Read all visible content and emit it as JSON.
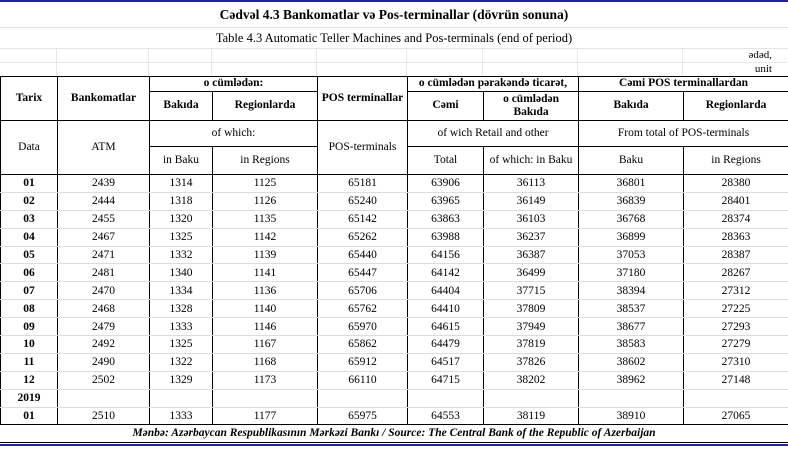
{
  "page": {
    "title_az": "Cədvəl 4.3 Bankomatlar və Pos-terminallar (dövrün sonuna)",
    "title_en": "Table 4.3 Automatic Teller Machines and Pos-terminals (end of period)",
    "unit_az": "ədəd,",
    "unit_en": "unit",
    "footer": "Mənbə: Azərbaycan Respublikasının Mərkəzi Bankı / Source: The Central Bank of the Republic of Azerbaijan",
    "accent_blue": "#2222a6"
  },
  "table": {
    "header": {
      "tarix": "Tarix",
      "data": "Data",
      "bankomatlar": "Bankomatlar",
      "atm": "ATM",
      "az_of_which": "o cümlədən:",
      "az_in_baku": "Bakıda",
      "az_in_regions": "Regionlarda",
      "pos_az": "POS terminallar",
      "pos_en": "POS-terminals",
      "en_of_which": "of  which:",
      "en_in_baku": "in Baku",
      "en_in_regions": "in Regions",
      "retail_az": "o cümlədən pərakəndə ticarət,",
      "retail_total_az": "Cəmi",
      "retail_baku_az": "o cümlədən Bakıda",
      "retail_en": "of wich Retail and other",
      "retail_total_en": "Total",
      "retail_baku_en": "of which: in Baku",
      "pos_total_az": "Cəmi POS terminallardan",
      "pos_total_baku_az": "Bakıda",
      "pos_total_regions_az": "Regionlarda",
      "pos_total_en": "From total of POS-terminals",
      "pos_total_baku_en": "Baku",
      "pos_total_regions_en": "in Regions"
    },
    "rows": [
      {
        "label": "01",
        "values": [
          "2439",
          "1314",
          "1125",
          "65181",
          "63906",
          "36113",
          "36801",
          "28380"
        ]
      },
      {
        "label": "02",
        "values": [
          "2444",
          "1318",
          "1126",
          "65240",
          "63965",
          "36149",
          "36839",
          "28401"
        ]
      },
      {
        "label": "03",
        "values": [
          "2455",
          "1320",
          "1135",
          "65142",
          "63863",
          "36103",
          "36768",
          "28374"
        ]
      },
      {
        "label": "04",
        "values": [
          "2467",
          "1325",
          "1142",
          "65262",
          "63988",
          "36237",
          "36899",
          "28363"
        ]
      },
      {
        "label": "05",
        "values": [
          "2471",
          "1332",
          "1139",
          "65440",
          "64156",
          "36387",
          "37053",
          "28387"
        ]
      },
      {
        "label": "06",
        "values": [
          "2481",
          "1340",
          "1141",
          "65447",
          "64142",
          "36499",
          "37180",
          "28267"
        ]
      },
      {
        "label": "07",
        "values": [
          "2470",
          "1334",
          "1136",
          "65706",
          "64404",
          "37715",
          "38394",
          "27312"
        ]
      },
      {
        "label": "08",
        "values": [
          "2468",
          "1328",
          "1140",
          "65762",
          "64410",
          "37809",
          "38537",
          "27225"
        ]
      },
      {
        "label": "09",
        "values": [
          "2479",
          "1333",
          "1146",
          "65970",
          "64615",
          "37949",
          "38677",
          "27293"
        ]
      },
      {
        "label": "10",
        "values": [
          "2492",
          "1325",
          "1167",
          "65862",
          "64479",
          "37819",
          "38583",
          "27279"
        ]
      },
      {
        "label": "11",
        "values": [
          "2490",
          "1322",
          "1168",
          "65912",
          "64517",
          "37826",
          "38602",
          "27310"
        ]
      },
      {
        "label": "12",
        "values": [
          "2502",
          "1329",
          "1173",
          "66110",
          "64715",
          "38202",
          "38962",
          "27148"
        ]
      },
      {
        "label": "2019",
        "values": [
          "",
          "",
          "",
          "",
          "",
          "",
          "",
          ""
        ]
      },
      {
        "label": "01",
        "values": [
          "2510",
          "1333",
          "1177",
          "65975",
          "64553",
          "38119",
          "38910",
          "27065"
        ]
      }
    ]
  }
}
